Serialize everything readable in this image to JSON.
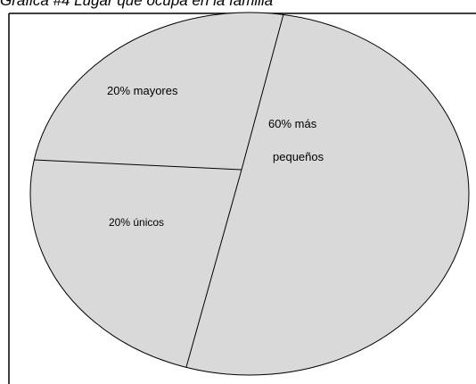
{
  "chart_data": {
    "type": "pie",
    "title": "Gráfica #4 Lugar que ocupa en la familia",
    "fill_color": "#d9d9d9",
    "slices": [
      {
        "label": "20% mayores",
        "value": 20
      },
      {
        "label": "60% más pequeños",
        "label_lines": [
          "60% más",
          "pequeños"
        ],
        "value": 60
      },
      {
        "label": "20% únicos",
        "value": 20
      }
    ]
  }
}
